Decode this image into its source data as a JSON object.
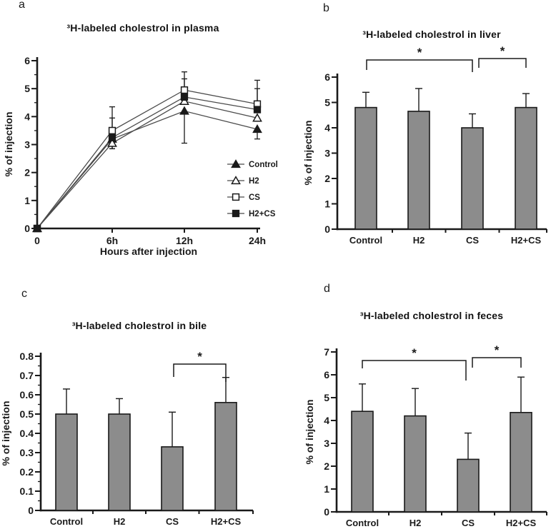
{
  "figure": {
    "background": "#ffffff",
    "axis_color": "#1a1a1a"
  },
  "chart_data": [
    {
      "panel_label": "a",
      "type": "line",
      "title": "³H-labeled cholestrol in plasma",
      "xlabel": "Hours after injection",
      "ylabel": "% of injection",
      "categories": [
        "0",
        "6h",
        "12h",
        "24h"
      ],
      "ylim": [
        0,
        6
      ],
      "yticks": [
        0,
        1,
        2,
        3,
        4,
        5,
        6
      ],
      "ytick_labels": [
        "0",
        "1",
        "2",
        "3",
        "4",
        "5",
        "6"
      ],
      "grid": false,
      "legend_position": "right-middle",
      "series": [
        {
          "name": "Control",
          "marker": "triangle-filled",
          "values": [
            0,
            3.2,
            4.2,
            3.55
          ],
          "err_up": [
            0,
            0,
            0,
            0
          ],
          "err_down": [
            0,
            0.35,
            1.15,
            0.35
          ]
        },
        {
          "name": "H2",
          "marker": "triangle-open",
          "values": [
            0,
            3.05,
            4.55,
            3.95
          ],
          "err_up": [
            0,
            0,
            0,
            0
          ],
          "err_down": [
            0,
            0.2,
            0,
            0
          ]
        },
        {
          "name": "CS",
          "marker": "square-open",
          "values": [
            0,
            3.5,
            4.95,
            4.45
          ],
          "err_up": [
            0,
            0.85,
            0.65,
            0.85
          ],
          "err_down": [
            0,
            0,
            0,
            0
          ]
        },
        {
          "name": "H2+CS",
          "marker": "square-filled",
          "values": [
            0,
            3.25,
            4.7,
            4.25
          ],
          "err_up": [
            0,
            0.7,
            0.65,
            0.75
          ],
          "err_down": [
            0,
            0,
            0,
            0
          ]
        }
      ]
    },
    {
      "panel_label": "b",
      "type": "bar",
      "title": "³H-labeled cholestrol in liver",
      "xlabel": "",
      "ylabel": "% of injection",
      "categories": [
        "Control",
        "H2",
        "CS",
        "H2+CS"
      ],
      "ylim": [
        0,
        6
      ],
      "yticks": [
        0,
        1,
        2,
        3,
        4,
        5,
        6
      ],
      "ytick_labels": [
        "0",
        "1",
        "2",
        "3",
        "4",
        "5",
        "6"
      ],
      "grid": false,
      "bar_color": "#8c8c8c",
      "values": [
        4.8,
        4.65,
        4.0,
        4.8
      ],
      "err_up": [
        0.6,
        0.9,
        0.55,
        0.55
      ],
      "significance": [
        {
          "from": "Control",
          "to": "CS",
          "label": "*"
        },
        {
          "from": "CS",
          "to": "H2+CS",
          "label": "*"
        }
      ]
    },
    {
      "panel_label": "c",
      "type": "bar",
      "title": "³H-labeled cholestrol in bile",
      "xlabel": "",
      "ylabel": "% of injection",
      "categories": [
        "Control",
        "H2",
        "CS",
        "H2+CS"
      ],
      "ylim": [
        0,
        0.8
      ],
      "yticks": [
        0,
        0.1,
        0.2,
        0.3,
        0.4,
        0.5,
        0.6,
        0.7,
        0.8
      ],
      "ytick_labels": [
        "0",
        "0.1",
        "0.2",
        "0.3",
        "0.4",
        "0.5",
        "0.6",
        "0.7",
        "0.8"
      ],
      "grid": false,
      "bar_color": "#8c8c8c",
      "values": [
        0.5,
        0.5,
        0.33,
        0.56
      ],
      "err_up": [
        0.13,
        0.08,
        0.18,
        0.13
      ],
      "significance": [
        {
          "from": "CS",
          "to": "H2+CS",
          "label": "*"
        }
      ]
    },
    {
      "panel_label": "d",
      "type": "bar",
      "title": "³H-labeled cholestrol in feces",
      "xlabel": "",
      "ylabel": "% of injection",
      "categories": [
        "Control",
        "H2",
        "CS",
        "H2+CS"
      ],
      "ylim": [
        0,
        7
      ],
      "yticks": [
        0,
        1,
        2,
        3,
        4,
        5,
        6,
        7
      ],
      "ytick_labels": [
        "0",
        "1",
        "2",
        "3",
        "4",
        "5",
        "6",
        "7"
      ],
      "grid": false,
      "bar_color": "#8c8c8c",
      "values": [
        4.4,
        4.2,
        2.3,
        4.35
      ],
      "err_up": [
        1.2,
        1.2,
        1.15,
        1.55
      ],
      "significance": [
        {
          "from": "Control",
          "to": "CS",
          "label": "*"
        },
        {
          "from": "CS",
          "to": "H2+CS",
          "label": "*"
        }
      ]
    }
  ]
}
